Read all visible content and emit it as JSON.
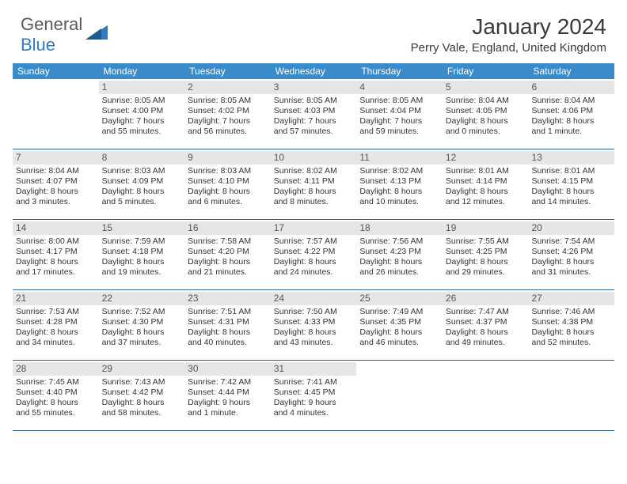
{
  "brand": {
    "general": "General",
    "blue": "Blue"
  },
  "header": {
    "title": "January 2024",
    "location": "Perry Vale, England, United Kingdom"
  },
  "colors": {
    "header_bar": "#3a8bc9",
    "week_divider": "#2f5f88",
    "daynum_bg": "#e6e6e6",
    "brand_blue": "#2f7bbf"
  },
  "weekdays": [
    "Sunday",
    "Monday",
    "Tuesday",
    "Wednesday",
    "Thursday",
    "Friday",
    "Saturday"
  ],
  "weeks": [
    [
      null,
      {
        "n": "1",
        "sun": "Sunrise: 8:05 AM",
        "set": "Sunset: 4:00 PM",
        "dl1": "Daylight: 7 hours",
        "dl2": "and 55 minutes."
      },
      {
        "n": "2",
        "sun": "Sunrise: 8:05 AM",
        "set": "Sunset: 4:02 PM",
        "dl1": "Daylight: 7 hours",
        "dl2": "and 56 minutes."
      },
      {
        "n": "3",
        "sun": "Sunrise: 8:05 AM",
        "set": "Sunset: 4:03 PM",
        "dl1": "Daylight: 7 hours",
        "dl2": "and 57 minutes."
      },
      {
        "n": "4",
        "sun": "Sunrise: 8:05 AM",
        "set": "Sunset: 4:04 PM",
        "dl1": "Daylight: 7 hours",
        "dl2": "and 59 minutes."
      },
      {
        "n": "5",
        "sun": "Sunrise: 8:04 AM",
        "set": "Sunset: 4:05 PM",
        "dl1": "Daylight: 8 hours",
        "dl2": "and 0 minutes."
      },
      {
        "n": "6",
        "sun": "Sunrise: 8:04 AM",
        "set": "Sunset: 4:06 PM",
        "dl1": "Daylight: 8 hours",
        "dl2": "and 1 minute."
      }
    ],
    [
      {
        "n": "7",
        "sun": "Sunrise: 8:04 AM",
        "set": "Sunset: 4:07 PM",
        "dl1": "Daylight: 8 hours",
        "dl2": "and 3 minutes."
      },
      {
        "n": "8",
        "sun": "Sunrise: 8:03 AM",
        "set": "Sunset: 4:09 PM",
        "dl1": "Daylight: 8 hours",
        "dl2": "and 5 minutes."
      },
      {
        "n": "9",
        "sun": "Sunrise: 8:03 AM",
        "set": "Sunset: 4:10 PM",
        "dl1": "Daylight: 8 hours",
        "dl2": "and 6 minutes."
      },
      {
        "n": "10",
        "sun": "Sunrise: 8:02 AM",
        "set": "Sunset: 4:11 PM",
        "dl1": "Daylight: 8 hours",
        "dl2": "and 8 minutes."
      },
      {
        "n": "11",
        "sun": "Sunrise: 8:02 AM",
        "set": "Sunset: 4:13 PM",
        "dl1": "Daylight: 8 hours",
        "dl2": "and 10 minutes."
      },
      {
        "n": "12",
        "sun": "Sunrise: 8:01 AM",
        "set": "Sunset: 4:14 PM",
        "dl1": "Daylight: 8 hours",
        "dl2": "and 12 minutes."
      },
      {
        "n": "13",
        "sun": "Sunrise: 8:01 AM",
        "set": "Sunset: 4:15 PM",
        "dl1": "Daylight: 8 hours",
        "dl2": "and 14 minutes."
      }
    ],
    [
      {
        "n": "14",
        "sun": "Sunrise: 8:00 AM",
        "set": "Sunset: 4:17 PM",
        "dl1": "Daylight: 8 hours",
        "dl2": "and 17 minutes."
      },
      {
        "n": "15",
        "sun": "Sunrise: 7:59 AM",
        "set": "Sunset: 4:18 PM",
        "dl1": "Daylight: 8 hours",
        "dl2": "and 19 minutes."
      },
      {
        "n": "16",
        "sun": "Sunrise: 7:58 AM",
        "set": "Sunset: 4:20 PM",
        "dl1": "Daylight: 8 hours",
        "dl2": "and 21 minutes."
      },
      {
        "n": "17",
        "sun": "Sunrise: 7:57 AM",
        "set": "Sunset: 4:22 PM",
        "dl1": "Daylight: 8 hours",
        "dl2": "and 24 minutes."
      },
      {
        "n": "18",
        "sun": "Sunrise: 7:56 AM",
        "set": "Sunset: 4:23 PM",
        "dl1": "Daylight: 8 hours",
        "dl2": "and 26 minutes."
      },
      {
        "n": "19",
        "sun": "Sunrise: 7:55 AM",
        "set": "Sunset: 4:25 PM",
        "dl1": "Daylight: 8 hours",
        "dl2": "and 29 minutes."
      },
      {
        "n": "20",
        "sun": "Sunrise: 7:54 AM",
        "set": "Sunset: 4:26 PM",
        "dl1": "Daylight: 8 hours",
        "dl2": "and 31 minutes."
      }
    ],
    [
      {
        "n": "21",
        "sun": "Sunrise: 7:53 AM",
        "set": "Sunset: 4:28 PM",
        "dl1": "Daylight: 8 hours",
        "dl2": "and 34 minutes."
      },
      {
        "n": "22",
        "sun": "Sunrise: 7:52 AM",
        "set": "Sunset: 4:30 PM",
        "dl1": "Daylight: 8 hours",
        "dl2": "and 37 minutes."
      },
      {
        "n": "23",
        "sun": "Sunrise: 7:51 AM",
        "set": "Sunset: 4:31 PM",
        "dl1": "Daylight: 8 hours",
        "dl2": "and 40 minutes."
      },
      {
        "n": "24",
        "sun": "Sunrise: 7:50 AM",
        "set": "Sunset: 4:33 PM",
        "dl1": "Daylight: 8 hours",
        "dl2": "and 43 minutes."
      },
      {
        "n": "25",
        "sun": "Sunrise: 7:49 AM",
        "set": "Sunset: 4:35 PM",
        "dl1": "Daylight: 8 hours",
        "dl2": "and 46 minutes."
      },
      {
        "n": "26",
        "sun": "Sunrise: 7:47 AM",
        "set": "Sunset: 4:37 PM",
        "dl1": "Daylight: 8 hours",
        "dl2": "and 49 minutes."
      },
      {
        "n": "27",
        "sun": "Sunrise: 7:46 AM",
        "set": "Sunset: 4:38 PM",
        "dl1": "Daylight: 8 hours",
        "dl2": "and 52 minutes."
      }
    ],
    [
      {
        "n": "28",
        "sun": "Sunrise: 7:45 AM",
        "set": "Sunset: 4:40 PM",
        "dl1": "Daylight: 8 hours",
        "dl2": "and 55 minutes."
      },
      {
        "n": "29",
        "sun": "Sunrise: 7:43 AM",
        "set": "Sunset: 4:42 PM",
        "dl1": "Daylight: 8 hours",
        "dl2": "and 58 minutes."
      },
      {
        "n": "30",
        "sun": "Sunrise: 7:42 AM",
        "set": "Sunset: 4:44 PM",
        "dl1": "Daylight: 9 hours",
        "dl2": "and 1 minute."
      },
      {
        "n": "31",
        "sun": "Sunrise: 7:41 AM",
        "set": "Sunset: 4:45 PM",
        "dl1": "Daylight: 9 hours",
        "dl2": "and 4 minutes."
      },
      null,
      null,
      null
    ]
  ]
}
